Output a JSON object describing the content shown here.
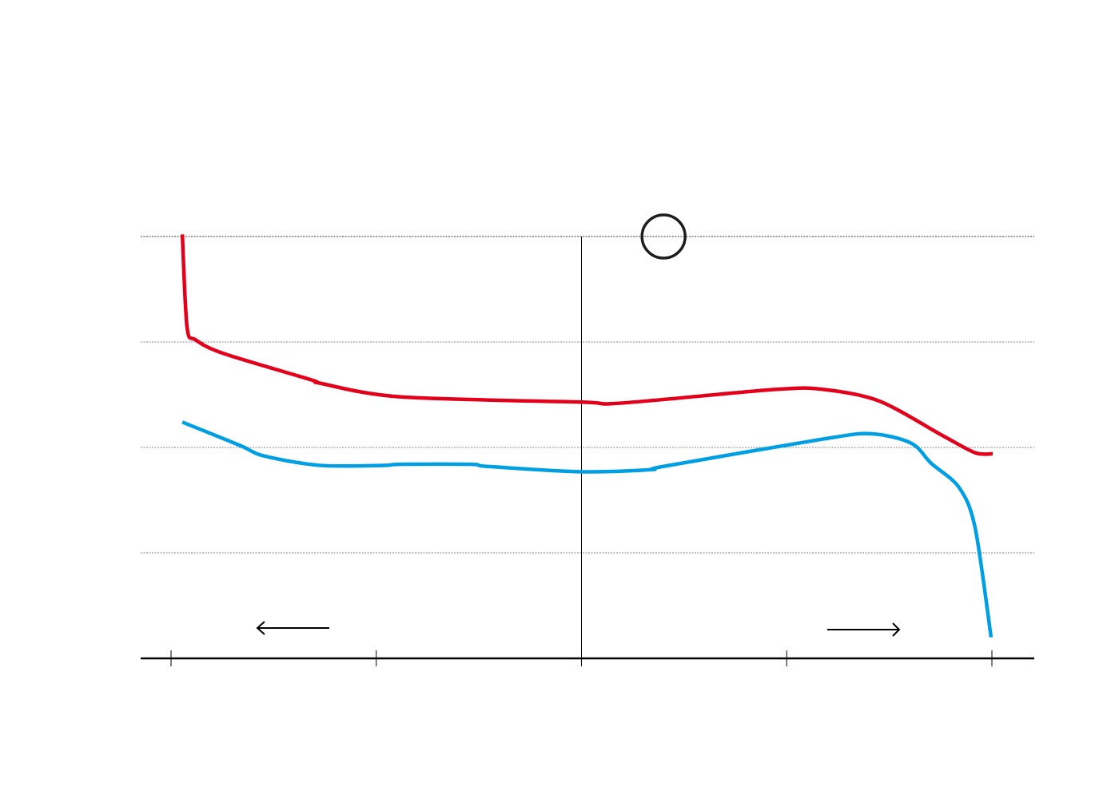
{
  "chart_data": {
    "type": "line",
    "title": "",
    "xlabel": "",
    "ylabel": "",
    "xlim": [
      -0.15,
      4.2
    ],
    "ylim": [
      0,
      4
    ],
    "x_ticks": [
      0,
      1,
      2,
      3,
      4
    ],
    "y_gridlines": [
      1,
      2,
      3,
      4
    ],
    "grid": true,
    "reference_x": 2,
    "marker_circle": {
      "x": 2.4,
      "y": 4
    },
    "arrows": [
      "left",
      "right"
    ],
    "series": [
      {
        "name": "red",
        "color": "#e2001a",
        "x": [
          0.055,
          0.078,
          0.12,
          0.257,
          0.685,
          0.724,
          1.114,
          1.998,
          2.189,
          2.944,
          3.178,
          3.451,
          3.762,
          3.918,
          4.004
        ],
        "y": [
          4.02,
          3.14,
          3.02,
          2.89,
          2.64,
          2.61,
          2.48,
          2.43,
          2.42,
          2.55,
          2.55,
          2.44,
          2.11,
          1.95,
          1.94
        ]
      },
      {
        "name": "blue",
        "color": "#009fe3",
        "x": [
          0.055,
          0.335,
          0.452,
          0.724,
          1.036,
          1.114,
          1.465,
          1.542,
          1.998,
          2.341,
          2.399,
          3.178,
          3.412,
          3.607,
          3.704,
          3.84,
          3.918,
          3.996
        ],
        "y": [
          2.24,
          2.02,
          1.92,
          1.83,
          1.83,
          1.84,
          1.84,
          1.82,
          1.77,
          1.79,
          1.82,
          2.08,
          2.13,
          2.04,
          1.85,
          1.62,
          1.24,
          0.2
        ]
      }
    ]
  }
}
